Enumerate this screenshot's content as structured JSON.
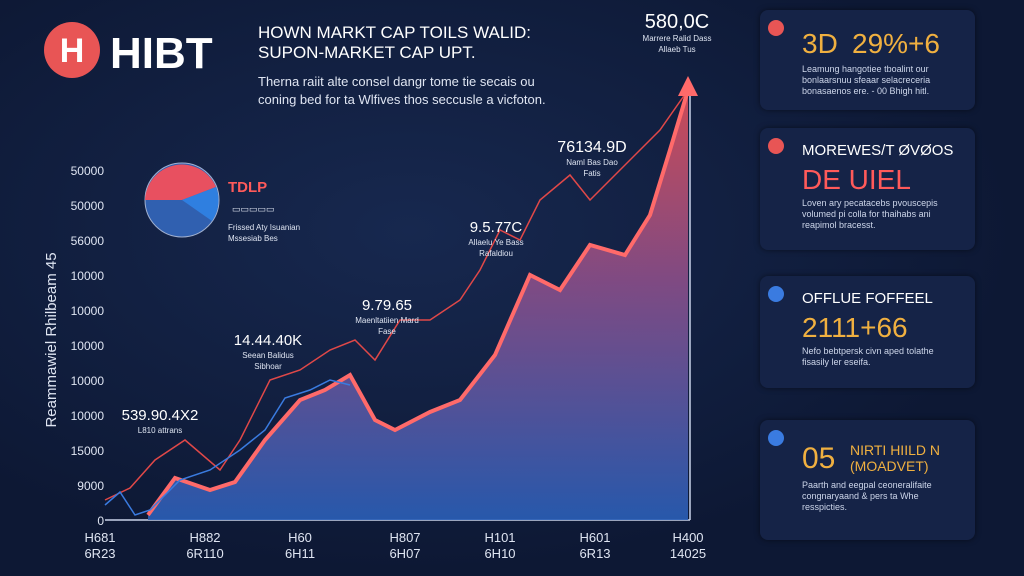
{
  "header": {
    "logo_letter": "H",
    "brand": "HIBT",
    "title": [
      "HOWN MARKT CAP TOILS WALID:",
      "SUPON-MARKET CAP UPT."
    ],
    "subtitle": [
      "Therna raiit alte consel dangr tome tie secais ou",
      "coning bed for ta Wlfives thos seccusle a vicfoton."
    ]
  },
  "chart": {
    "y_axis_title": "Reammawiel Rhilbeam 45",
    "y_labels": [
      "50000",
      "50000",
      "56000",
      "10000",
      "10000",
      "10000",
      "10000",
      "10000",
      "15000",
      "9000",
      "0"
    ],
    "x_labels": [
      [
        "H681",
        "6R23"
      ],
      [
        "H882",
        "6R110"
      ],
      [
        "H60",
        "6H11"
      ],
      [
        "H807",
        "6H07"
      ],
      [
        "H101",
        "6H10"
      ],
      [
        "H601",
        "6R13"
      ],
      [
        "H400",
        "14025"
      ]
    ],
    "pie_legend": {
      "title": "TDLP",
      "box": "▭▭▭▭▭",
      "lines": [
        "Frissed Aty Isuanian",
        "Mssesiab Bes"
      ]
    },
    "annotations": [
      {
        "value": "580,0C",
        "lines": [
          "Marrere Ralid Dass",
          "Allaeb Tus"
        ]
      },
      {
        "value": "76134.9D",
        "lines": [
          "Naml Bas Dao",
          "Fatis"
        ]
      },
      {
        "value": "9.5.77C",
        "lines": [
          "Allaelu Ye Bass",
          "Rafaldiou"
        ]
      },
      {
        "value": "9.79.65",
        "lines": [
          "Maenltatiien Mard",
          "Fase"
        ]
      },
      {
        "value": "14.44.40K",
        "lines": [
          "Seean Balidus",
          "Sibhoar"
        ]
      },
      {
        "value": "539.90.4X2",
        "lines": [
          "L810 attrans"
        ]
      }
    ]
  },
  "cards": [
    {
      "label": "3D",
      "value": "29%+6",
      "lines": [
        "Leamung hangotiee tboalint our",
        "bonlaarsnuu sfeaar selacreceria",
        "bonasaenos ere. - 00 Bhigh hitl."
      ]
    },
    {
      "label": "MOREWES/T ØVØOS",
      "value": "DE UIEL",
      "lines": [
        "Loven ary pecatacebs pvouscepis",
        "volumed pi colla for thaihabs ani",
        "reapimol bracesst."
      ]
    },
    {
      "label": "OFFLUE FOFFEEL",
      "value": "2111+66",
      "lines": [
        "Nefo bebtpersk civn aped tolathe",
        "fisasily ler eseifa."
      ]
    },
    {
      "label": "05",
      "value": "NIRTI HIILD N (MOADVET)",
      "lines": [
        "Paarth and eegpal ceoneralifaite",
        "congnaryaand & pers ta Whe",
        "resspicties."
      ]
    }
  ]
}
